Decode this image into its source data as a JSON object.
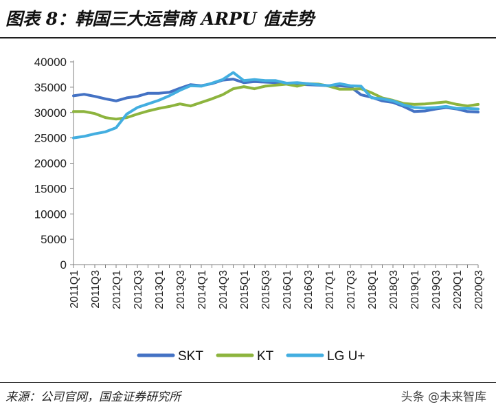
{
  "title": "图表 8：韩国三大运营商 ARPU 值走势",
  "source": "来源：公司官网，国金证券研究所",
  "watermark": "头条 @未来智库",
  "chart_data": {
    "type": "line",
    "title": "图表 8：韩国三大运营商 ARPU 值走势",
    "xlabel": "",
    "ylabel": "",
    "ylim": [
      0,
      40000
    ],
    "yticks": [
      0,
      5000,
      10000,
      15000,
      20000,
      25000,
      30000,
      35000,
      40000
    ],
    "grid": false,
    "legend": "bottom",
    "categories": [
      "2011Q1",
      "2011Q2",
      "2011Q3",
      "2011Q4",
      "2012Q1",
      "2012Q2",
      "2012Q3",
      "2012Q4",
      "2013Q1",
      "2013Q2",
      "2013Q3",
      "2013Q4",
      "2014Q1",
      "2014Q2",
      "2014Q3",
      "2014Q4",
      "2015Q1",
      "2015Q2",
      "2015Q3",
      "2015Q4",
      "2016Q1",
      "2016Q2",
      "2016Q3",
      "2016Q4",
      "2017Q1",
      "2017Q2",
      "2017Q3",
      "2017Q4",
      "2018Q1",
      "2018Q2",
      "2018Q3",
      "2018Q4",
      "2019Q1",
      "2019Q2",
      "2019Q3",
      "2019Q4",
      "2020Q1",
      "2020Q2",
      "2020Q3"
    ],
    "tick_labels": [
      "2011Q1",
      "2011Q3",
      "2012Q1",
      "2012Q3",
      "2013Q1",
      "2013Q3",
      "2014Q1",
      "2014Q3",
      "2015Q1",
      "2015Q3",
      "2016Q1",
      "2016Q3",
      "2017Q1",
      "2017Q3",
      "2018Q1",
      "2018Q3",
      "2019Q1",
      "2019Q3",
      "2020Q1",
      "2020Q3"
    ],
    "series": [
      {
        "name": "SKT",
        "color": "#4472C4",
        "values": [
          33300,
          33600,
          33200,
          32700,
          32300,
          32900,
          33200,
          33800,
          33800,
          34000,
          34800,
          35500,
          35300,
          35700,
          36400,
          36600,
          35900,
          36100,
          36000,
          35900,
          35800,
          35600,
          35500,
          35400,
          35300,
          35300,
          35100,
          33500,
          33000,
          32300,
          32000,
          31200,
          30200,
          30300,
          30700,
          31000,
          30700,
          30200,
          30100
        ]
      },
      {
        "name": "KT",
        "color": "#8DB43E",
        "values": [
          30200,
          30200,
          29800,
          29000,
          28700,
          29000,
          29700,
          30300,
          30800,
          31200,
          31700,
          31300,
          32000,
          32700,
          33500,
          34700,
          35100,
          34700,
          35200,
          35400,
          35600,
          35200,
          35700,
          35600,
          35200,
          34600,
          34600,
          34700,
          33900,
          32900,
          32400,
          31800,
          31600,
          31700,
          31900,
          32100,
          31600,
          31300,
          31600
        ]
      },
      {
        "name": "LG U+",
        "color": "#43AEE0",
        "values": [
          25000,
          25300,
          25800,
          26200,
          27000,
          29700,
          31000,
          31700,
          32400,
          33300,
          34400,
          35300,
          35200,
          35800,
          36500,
          37900,
          36300,
          36500,
          36300,
          36300,
          35800,
          35900,
          35700,
          35500,
          35300,
          35700,
          35300,
          35200,
          32900,
          32700,
          32300,
          31500,
          31000,
          30900,
          31000,
          31200,
          30800,
          30800,
          30700
        ]
      }
    ]
  }
}
